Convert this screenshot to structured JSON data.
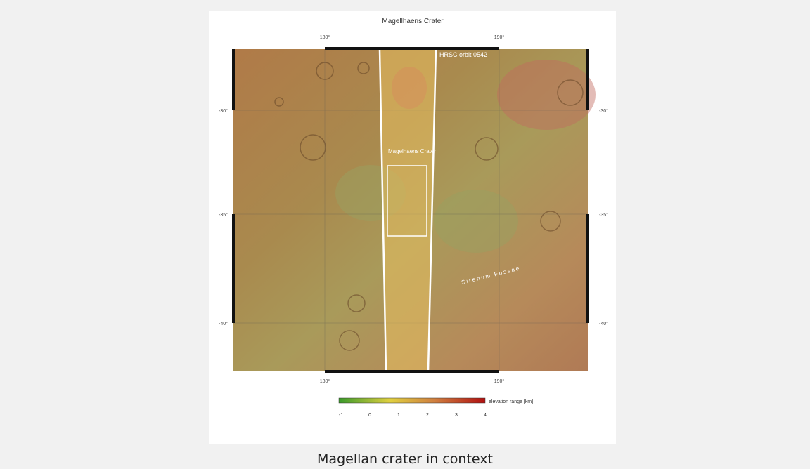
{
  "map": {
    "title": "Magellhaens Crater",
    "longitude_labels": [
      "180°",
      "190°"
    ],
    "latitude_labels": [
      "-30°",
      "-35°",
      "-40°"
    ],
    "annotations": {
      "orbit": "HRSC orbit 0542",
      "crater": "Magelhaens Crater",
      "fossae": "Sirenum Fossae"
    },
    "legend": {
      "title": "elevation range [km]",
      "ticks": [
        "-1",
        "0",
        "1",
        "2",
        "3",
        "4"
      ]
    }
  },
  "caption": "Magellan crater in context"
}
